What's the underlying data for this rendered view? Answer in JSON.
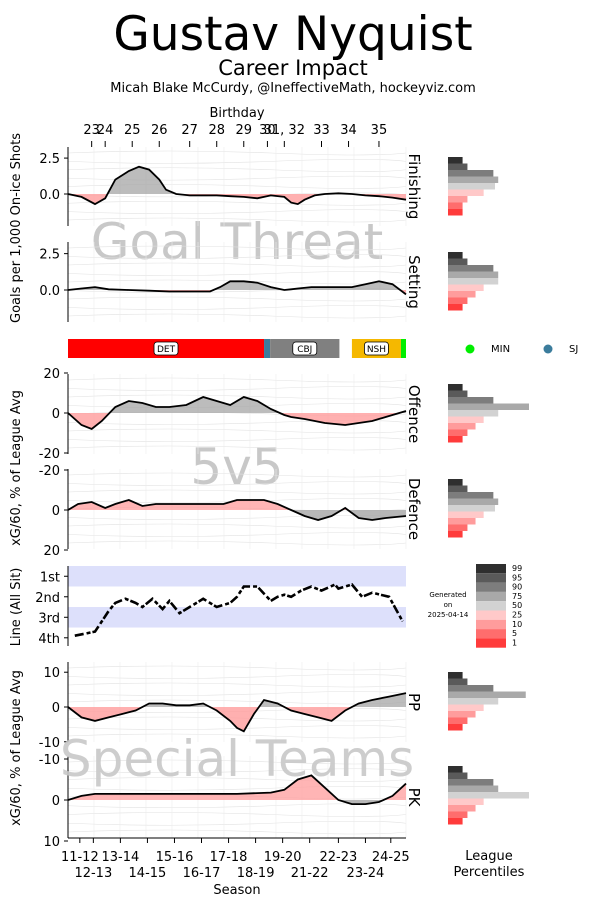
{
  "header": {
    "title": "Gustav Nyquist",
    "subtitle": "Career Impact",
    "credit": "Micah Blake McCurdy, @IneffectiveMath, hockeyviz.com"
  },
  "birthday_axis": {
    "label": "Birthday",
    "ticks": [
      "23",
      "24",
      "25",
      "26",
      "27",
      "28",
      "29",
      "30",
      "31, 32",
      "33",
      "34",
      "35"
    ]
  },
  "season_axis": {
    "label": "Season",
    "upper_ticks": [
      "11-12",
      "13-14",
      "15-16",
      "17-18",
      "19-20",
      "22-23",
      "24-25"
    ],
    "lower_ticks": [
      "12-13",
      "14-15",
      "16-17",
      "18-19",
      "21-22",
      "23-24"
    ]
  },
  "group_labels": {
    "goal_threat": "Goal Threat",
    "fivev5": "5v5",
    "special_teams": "Special Teams"
  },
  "y_labels": {
    "goals": "Goals per 1,000 On-ice Shots",
    "xg_5v5": "xG/60, % of League Avg",
    "line": "Line (All Sit)",
    "xg_st": "xG/60, % of League Avg"
  },
  "teams": {
    "segments": [
      {
        "label": "DET",
        "start": 0,
        "end": 0.58,
        "color": "#ff0000"
      },
      {
        "label": "",
        "start": 0.58,
        "end": 0.598,
        "color": "#3b7c9c"
      },
      {
        "label": "CBJ",
        "start": 0.598,
        "end": 0.803,
        "color": "#808080"
      },
      {
        "label": "NSH",
        "start": 0.84,
        "end": 0.985,
        "color": "#f5b800"
      },
      {
        "label": "",
        "start": 0.985,
        "end": 1,
        "color": "#00ee00"
      }
    ],
    "legend": [
      {
        "label": "MIN",
        "color": "#00ee00"
      },
      {
        "label": "SJ",
        "color": "#3b7c9c"
      }
    ]
  },
  "percentile_legend": {
    "generated": [
      "Generated",
      "on",
      "2025-04-14"
    ],
    "levels": [
      {
        "label": "99",
        "color": "#2f2f2f"
      },
      {
        "label": "95",
        "color": "#5a5a5a"
      },
      {
        "label": "90",
        "color": "#7d7d7d"
      },
      {
        "label": "75",
        "color": "#a9a9a9"
      },
      {
        "label": "50",
        "color": "#d2d2d2"
      },
      {
        "label": "25",
        "color": "#ffc9c9"
      },
      {
        "label": "10",
        "color": "#ff9c9c"
      },
      {
        "label": "5",
        "color": "#ff6d6d"
      },
      {
        "label": "1",
        "color": "#ff3b3b"
      }
    ],
    "footer": [
      "League",
      "Percentiles"
    ]
  },
  "chart_data": [
    {
      "type": "area",
      "name": "Finishing",
      "ylim": [
        -2.3,
        3.2
      ],
      "ticks": [
        "2.5",
        "0.0"
      ],
      "x": [
        0,
        0.04,
        0.08,
        0.11,
        0.14,
        0.18,
        0.21,
        0.24,
        0.27,
        0.29,
        0.32,
        0.36,
        0.4,
        0.44,
        0.48,
        0.52,
        0.56,
        0.6,
        0.64,
        0.66,
        0.68,
        0.7,
        0.73,
        0.76,
        0.8,
        0.84,
        0.88,
        0.92,
        0.96,
        1.0
      ],
      "y": [
        0,
        -0.2,
        -0.7,
        -0.3,
        1.0,
        1.6,
        1.9,
        1.7,
        1.0,
        0.3,
        0.0,
        -0.1,
        -0.1,
        -0.1,
        -0.15,
        -0.2,
        -0.3,
        -0.1,
        -0.2,
        -0.6,
        -0.7,
        -0.4,
        -0.1,
        0.0,
        0.05,
        0.0,
        -0.1,
        -0.15,
        -0.25,
        -0.4
      ],
      "percentile_bars": [
        0.18,
        0.24,
        0.56,
        0.62,
        0.58,
        0.44,
        0.24,
        0.18,
        0.18
      ]
    },
    {
      "type": "area",
      "name": "Setting",
      "ylim": [
        -2.3,
        3.2
      ],
      "ticks": [
        "2.5",
        "0.0"
      ],
      "x": [
        0,
        0.04,
        0.08,
        0.12,
        0.18,
        0.24,
        0.3,
        0.36,
        0.42,
        0.45,
        0.48,
        0.52,
        0.56,
        0.6,
        0.64,
        0.66,
        0.68,
        0.72,
        0.76,
        0.8,
        0.84,
        0.88,
        0.92,
        0.96,
        1.0
      ],
      "y": [
        0,
        0.1,
        0.2,
        0.05,
        0.0,
        -0.05,
        -0.1,
        -0.1,
        -0.1,
        0.2,
        0.6,
        0.6,
        0.5,
        0.2,
        0.0,
        0.05,
        0.1,
        0.2,
        0.2,
        0.2,
        0.2,
        0.4,
        0.6,
        0.4,
        -0.3
      ],
      "percentile_bars": [
        0.18,
        0.24,
        0.56,
        0.62,
        0.62,
        0.44,
        0.34,
        0.24,
        0.18
      ]
    },
    {
      "type": "area",
      "name": "Offence",
      "ylim": [
        -20,
        20
      ],
      "ticks": [
        "20",
        "0",
        "-20"
      ],
      "x": [
        0,
        0.04,
        0.07,
        0.1,
        0.14,
        0.18,
        0.22,
        0.26,
        0.3,
        0.35,
        0.4,
        0.44,
        0.48,
        0.52,
        0.56,
        0.6,
        0.64,
        0.66,
        0.7,
        0.76,
        0.82,
        0.86,
        0.9,
        0.94,
        1.0
      ],
      "y": [
        0,
        -6,
        -8,
        -4,
        3,
        6,
        5,
        3,
        3,
        4,
        8,
        6,
        4,
        8,
        6,
        2,
        -1,
        -2,
        -3,
        -5,
        -6,
        -5,
        -4,
        -2,
        1
      ],
      "percentile_bars": [
        0.18,
        0.24,
        0.56,
        1.0,
        0.62,
        0.44,
        0.34,
        0.24,
        0.18
      ]
    },
    {
      "type": "area",
      "name": "Defence",
      "ylim": [
        -20,
        20
      ],
      "ticks": [
        "-20",
        "0",
        "20"
      ],
      "inverted": true,
      "x": [
        0,
        0.03,
        0.07,
        0.11,
        0.14,
        0.18,
        0.22,
        0.26,
        0.3,
        0.34,
        0.38,
        0.42,
        0.46,
        0.5,
        0.54,
        0.58,
        0.62,
        0.66,
        0.7,
        0.74,
        0.78,
        0.82,
        0.86,
        0.9,
        0.94,
        1.0
      ],
      "y": [
        0,
        -3,
        -4,
        -1,
        -3,
        -5,
        -2,
        -3,
        -3,
        -3,
        -3,
        -3,
        -3,
        -5,
        -5,
        -5,
        -3,
        0,
        3,
        5,
        3,
        -1,
        4,
        5,
        4,
        3
      ],
      "percentile_bars": [
        0.18,
        0.24,
        0.56,
        0.62,
        0.58,
        0.44,
        0.34,
        0.24,
        0.18
      ]
    },
    {
      "type": "scatter",
      "name": "Line (All Sit)",
      "ylim": [
        4.4,
        0.5
      ],
      "ticks": [
        "1st",
        "2nd",
        "3rd",
        "4th"
      ],
      "x": [
        0.02,
        0.05,
        0.08,
        0.1,
        0.12,
        0.14,
        0.17,
        0.2,
        0.22,
        0.25,
        0.28,
        0.3,
        0.33,
        0.36,
        0.4,
        0.44,
        0.48,
        0.5,
        0.52,
        0.56,
        0.6,
        0.62,
        0.64,
        0.66,
        0.69,
        0.72,
        0.75,
        0.79,
        0.8,
        0.84,
        0.87,
        0.9,
        0.95,
        0.99
      ],
      "y": [
        3.9,
        3.8,
        3.7,
        3.2,
        2.7,
        2.3,
        2.1,
        2.3,
        2.5,
        2.1,
        2.6,
        2.2,
        2.8,
        2.5,
        2.1,
        2.5,
        2.3,
        2.0,
        1.5,
        1.5,
        2.2,
        2.0,
        1.9,
        2.0,
        1.7,
        1.5,
        1.7,
        1.4,
        1.6,
        1.4,
        2.0,
        1.8,
        2.0,
        3.2
      ]
    },
    {
      "type": "area",
      "name": "PP",
      "ylim": [
        -10,
        13
      ],
      "ticks": [
        "10",
        "0",
        "-10"
      ],
      "x": [
        0,
        0.04,
        0.08,
        0.12,
        0.16,
        0.2,
        0.24,
        0.28,
        0.32,
        0.36,
        0.4,
        0.44,
        0.48,
        0.5,
        0.52,
        0.55,
        0.58,
        0.62,
        0.66,
        0.7,
        0.74,
        0.78,
        0.82,
        0.86,
        0.9,
        0.95,
        1.0
      ],
      "y": [
        0,
        -3,
        -4,
        -3,
        -2,
        -1,
        1,
        1,
        0.5,
        0.5,
        1,
        -1,
        -4,
        -6,
        -7,
        -2,
        2,
        1,
        -1,
        -2,
        -3,
        -4,
        -1,
        1,
        2,
        3,
        4
      ],
      "percentile_bars": [
        0.18,
        0.24,
        0.56,
        0.96,
        0.62,
        0.44,
        0.34,
        0.24,
        0.18
      ]
    },
    {
      "type": "area",
      "name": "PK",
      "ylim": [
        -10,
        10
      ],
      "ticks": [
        "-10",
        "0",
        "10"
      ],
      "inverted": true,
      "x": [
        0,
        0.04,
        0.08,
        0.12,
        0.2,
        0.3,
        0.4,
        0.5,
        0.6,
        0.64,
        0.68,
        0.72,
        0.76,
        0.8,
        0.84,
        0.88,
        0.92,
        0.96,
        1.0
      ],
      "y": [
        0,
        -1,
        -1.5,
        -1.5,
        -1.5,
        -1.5,
        -1.5,
        -1.5,
        -1.8,
        -2.5,
        -5,
        -6,
        -3,
        0,
        1,
        1,
        0.5,
        -1,
        -4
      ],
      "percentile_bars": [
        0.18,
        0.24,
        0.56,
        0.62,
        1.0,
        0.44,
        0.34,
        0.24,
        0.18
      ]
    }
  ]
}
